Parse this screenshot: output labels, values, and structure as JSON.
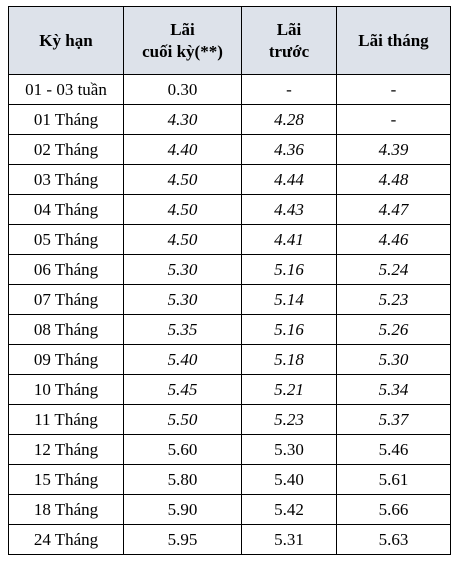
{
  "table": {
    "headers": {
      "term": "Kỳ hạn",
      "end_of_term_line1": "Lãi",
      "end_of_term_line2": "cuối kỳ(**)",
      "upfront_line1": "Lãi",
      "upfront_line2": "trước",
      "monthly": "Lãi tháng"
    },
    "rows": [
      {
        "term": "01 - 03 tuần",
        "end_of_term": "0.30",
        "upfront": "-",
        "monthly": "-",
        "italic": false
      },
      {
        "term": "01 Tháng",
        "end_of_term": "4.30",
        "upfront": "4.28",
        "monthly": "-",
        "italic": true
      },
      {
        "term": "02 Tháng",
        "end_of_term": "4.40",
        "upfront": "4.36",
        "monthly": "4.39",
        "italic": true
      },
      {
        "term": "03 Tháng",
        "end_of_term": "4.50",
        "upfront": "4.44",
        "monthly": "4.48",
        "italic": true
      },
      {
        "term": "04 Tháng",
        "end_of_term": "4.50",
        "upfront": "4.43",
        "monthly": "4.47",
        "italic": true
      },
      {
        "term": "05 Tháng",
        "end_of_term": "4.50",
        "upfront": "4.41",
        "monthly": "4.46",
        "italic": true
      },
      {
        "term": "06 Tháng",
        "end_of_term": "5.30",
        "upfront": "5.16",
        "monthly": "5.24",
        "italic": true
      },
      {
        "term": "07 Tháng",
        "end_of_term": "5.30",
        "upfront": "5.14",
        "monthly": "5.23",
        "italic": true
      },
      {
        "term": "08 Tháng",
        "end_of_term": "5.35",
        "upfront": "5.16",
        "monthly": "5.26",
        "italic": true
      },
      {
        "term": "09 Tháng",
        "end_of_term": "5.40",
        "upfront": "5.18",
        "monthly": "5.30",
        "italic": true
      },
      {
        "term": "10 Tháng",
        "end_of_term": "5.45",
        "upfront": "5.21",
        "monthly": "5.34",
        "italic": true
      },
      {
        "term": "11 Tháng",
        "end_of_term": "5.50",
        "upfront": "5.23",
        "monthly": "5.37",
        "italic": true
      },
      {
        "term": "12 Tháng",
        "end_of_term": "5.60",
        "upfront": "5.30",
        "monthly": "5.46",
        "italic": false
      },
      {
        "term": "15 Tháng",
        "end_of_term": "5.80",
        "upfront": "5.40",
        "monthly": "5.61",
        "italic": false
      },
      {
        "term": "18 Tháng",
        "end_of_term": "5.90",
        "upfront": "5.42",
        "monthly": "5.66",
        "italic": false
      },
      {
        "term": "24 Tháng",
        "end_of_term": "5.95",
        "upfront": "5.31",
        "monthly": "5.63",
        "italic": false
      }
    ]
  },
  "colors": {
    "header_background": "#dde2ea",
    "border": "#000000",
    "text": "#000000"
  }
}
